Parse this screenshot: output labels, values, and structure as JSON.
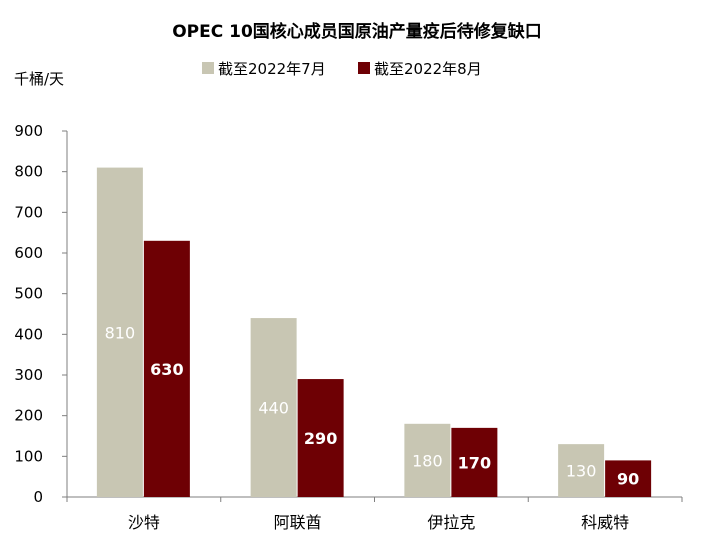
{
  "chart_data": {
    "type": "bar",
    "title": "OPEC 10国核心成员国原油产量疫后待修复缺口",
    "unit_label": "千桶/天",
    "categories": [
      "沙特",
      "阿联酋",
      "伊拉克",
      "科威特"
    ],
    "series": [
      {
        "name": "截至2022年7月",
        "color": "#c8c6b3",
        "values": [
          810,
          440,
          180,
          130
        ]
      },
      {
        "name": "截至2022年8月",
        "color": "#6e0004",
        "values": [
          630,
          290,
          170,
          90
        ]
      }
    ],
    "ylim": [
      0,
      900
    ],
    "yticks": [
      0,
      100,
      200,
      300,
      400,
      500,
      600,
      700,
      800,
      900
    ],
    "legend_position": "top-center",
    "grid": false,
    "data_labels": true
  }
}
